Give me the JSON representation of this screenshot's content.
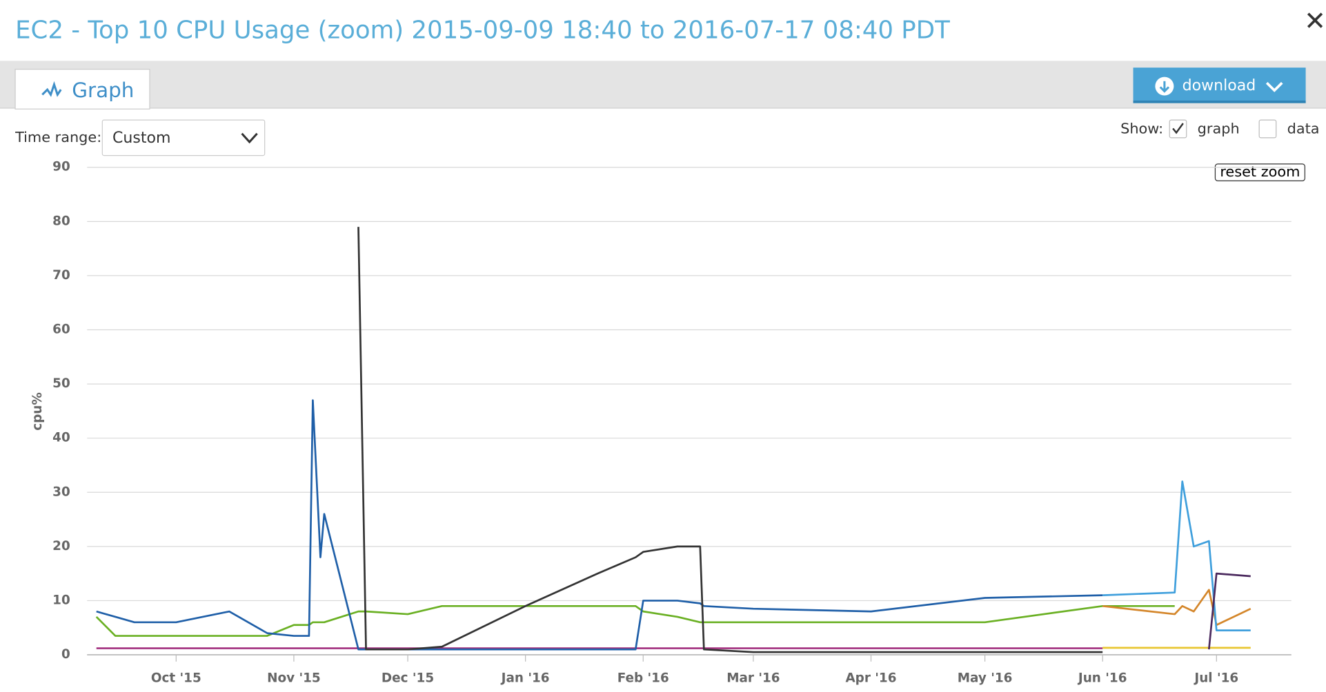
{
  "header": {
    "title": "EC2 - Top 10 CPU Usage (zoom) 2015-09-09 18:40 to 2016-07-17 08:40 PDT"
  },
  "tabs": {
    "graph": "Graph",
    "download": "download"
  },
  "controls": {
    "time_range_label": "Time range:",
    "time_range_value": "Custom",
    "show_label": "Show:",
    "show_graph": "graph",
    "show_data": "data",
    "reset_zoom": "reset zoom"
  },
  "chart_data": {
    "type": "line",
    "ylabel": "cpu%",
    "xlim": [
      "2015-09-09T18:40",
      "2016-07-17T08:40"
    ],
    "xticks": [
      {
        "value": "2015-10-01",
        "label": "Oct '15"
      },
      {
        "value": "2015-11-01",
        "label": "Nov '15"
      },
      {
        "value": "2015-12-01",
        "label": "Dec '15"
      },
      {
        "value": "2016-01-01",
        "label": "Jan '16"
      },
      {
        "value": "2016-02-01",
        "label": "Feb '16"
      },
      {
        "value": "2016-03-01",
        "label": "Mar '16"
      },
      {
        "value": "2016-04-01",
        "label": "Apr '16"
      },
      {
        "value": "2016-05-01",
        "label": "May '16"
      },
      {
        "value": "2016-06-01",
        "label": "Jun '16"
      },
      {
        "value": "2016-07-01",
        "label": "Jul '16"
      }
    ],
    "ylim": [
      0,
      90
    ],
    "yticks": [
      0,
      10,
      20,
      30,
      40,
      50,
      60,
      70,
      80,
      90
    ],
    "grid": true,
    "x": [
      "2015-09-10",
      "2015-09-15",
      "2015-09-20",
      "2015-10-01",
      "2015-10-15",
      "2015-10-25",
      "2015-11-01",
      "2015-11-05",
      "2015-11-06",
      "2015-11-08",
      "2015-11-09",
      "2015-11-18",
      "2015-11-20",
      "2015-12-01",
      "2015-12-10",
      "2016-01-01",
      "2016-01-20",
      "2016-01-30",
      "2016-02-01",
      "2016-02-10",
      "2016-02-16",
      "2016-02-17",
      "2016-03-01",
      "2016-04-01",
      "2016-05-01",
      "2016-06-01",
      "2016-06-20",
      "2016-06-22",
      "2016-06-25",
      "2016-06-29",
      "2016-07-01",
      "2016-07-10"
    ],
    "series": [
      {
        "color": "#a3307f",
        "values": [
          1.2,
          1.2,
          1.2,
          1.2,
          1.2,
          1.2,
          1.2,
          1.2,
          1.2,
          1.2,
          1.2,
          1.2,
          1.2,
          1.2,
          1.2,
          1.2,
          1.2,
          1.2,
          1.2,
          1.2,
          1.2,
          1.2,
          1.2,
          1.2,
          1.2,
          1.2,
          null,
          null,
          null,
          null,
          null,
          null
        ]
      },
      {
        "color": "#6ab023",
        "values": [
          7,
          3.5,
          3.5,
          3.5,
          3.5,
          3.5,
          5.5,
          5.5,
          6,
          6,
          6,
          8,
          8,
          7.5,
          9,
          9,
          9,
          9,
          8,
          7,
          6,
          6,
          6,
          6,
          6,
          9,
          9,
          null,
          null,
          null,
          null,
          null
        ]
      },
      {
        "color": "#1f5fa8",
        "values": [
          8,
          7,
          6,
          6,
          8,
          4,
          3.5,
          3.5,
          47,
          18,
          26,
          1,
          1,
          1,
          1,
          1,
          1,
          1,
          10,
          10,
          9.5,
          9,
          8.5,
          8,
          10.5,
          11,
          null,
          null,
          null,
          null,
          null,
          null
        ]
      },
      {
        "color": "#333333",
        "values": [
          null,
          null,
          null,
          null,
          null,
          null,
          null,
          null,
          null,
          null,
          null,
          79,
          1,
          1,
          1.5,
          9,
          15,
          18,
          19,
          20,
          20,
          1,
          0.5,
          0.5,
          0.5,
          0.5,
          null,
          null,
          null,
          null,
          null,
          null
        ]
      },
      {
        "color": "#e8c630",
        "values": [
          null,
          null,
          null,
          null,
          null,
          null,
          null,
          null,
          null,
          null,
          null,
          null,
          null,
          null,
          null,
          null,
          null,
          null,
          null,
          null,
          null,
          null,
          null,
          null,
          null,
          1.3,
          1.3,
          1.3,
          1.3,
          1.3,
          1.3,
          1.3
        ]
      },
      {
        "color": "#d4862a",
        "values": [
          null,
          null,
          null,
          null,
          null,
          null,
          null,
          null,
          null,
          null,
          null,
          null,
          null,
          null,
          null,
          null,
          null,
          null,
          null,
          null,
          null,
          null,
          null,
          null,
          null,
          9,
          7.5,
          9,
          8,
          12,
          5.5,
          8.5
        ]
      },
      {
        "color": "#3f9fdc",
        "values": [
          null,
          null,
          null,
          null,
          null,
          null,
          null,
          null,
          null,
          null,
          null,
          null,
          null,
          null,
          null,
          null,
          null,
          null,
          null,
          null,
          null,
          null,
          null,
          null,
          null,
          11,
          11.5,
          32,
          20,
          21,
          4.5,
          4.5
        ]
      },
      {
        "color": "#4b2a5e",
        "values": [
          null,
          null,
          null,
          null,
          null,
          null,
          null,
          null,
          null,
          null,
          null,
          null,
          null,
          null,
          null,
          null,
          null,
          null,
          null,
          null,
          null,
          null,
          null,
          null,
          null,
          null,
          null,
          null,
          null,
          1,
          15,
          14.5
        ]
      }
    ]
  }
}
